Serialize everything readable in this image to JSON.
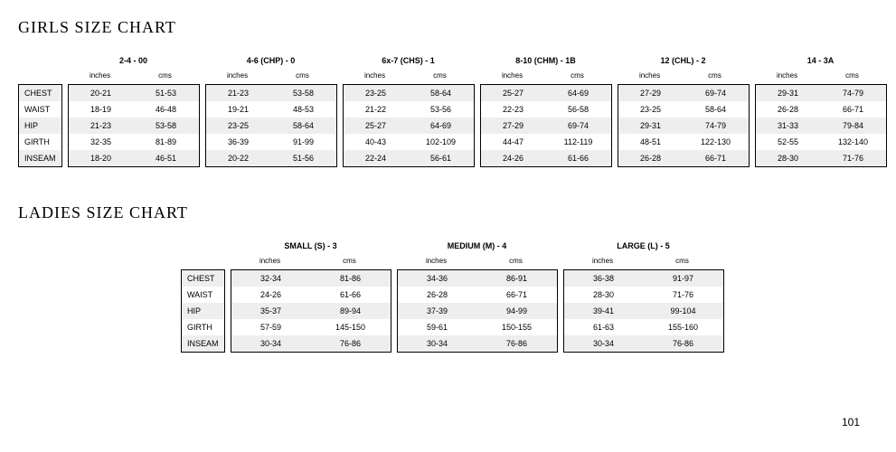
{
  "page_number": "101",
  "girls": {
    "title": "GIRLS SIZE CHART",
    "row_labels": [
      "CHEST",
      "WAIST",
      "HIP",
      "GIRTH",
      "INSEAM"
    ],
    "unit_labels": [
      "inches",
      "cms"
    ],
    "sizes": [
      {
        "label": "2-4 - 00",
        "rows": [
          [
            "20-21",
            "51-53"
          ],
          [
            "18-19",
            "46-48"
          ],
          [
            "21-23",
            "53-58"
          ],
          [
            "32-35",
            "81-89"
          ],
          [
            "18-20",
            "46-51"
          ]
        ]
      },
      {
        "label": "4-6 (CHP) - 0",
        "rows": [
          [
            "21-23",
            "53-58"
          ],
          [
            "19-21",
            "48-53"
          ],
          [
            "23-25",
            "58-64"
          ],
          [
            "36-39",
            "91-99"
          ],
          [
            "20-22",
            "51-56"
          ]
        ]
      },
      {
        "label": "6x-7 (CHS) - 1",
        "rows": [
          [
            "23-25",
            "58-64"
          ],
          [
            "21-22",
            "53-56"
          ],
          [
            "25-27",
            "64-69"
          ],
          [
            "40-43",
            "102-109"
          ],
          [
            "22-24",
            "56-61"
          ]
        ]
      },
      {
        "label": "8-10 (CHM) - 1B",
        "rows": [
          [
            "25-27",
            "64-69"
          ],
          [
            "22-23",
            "56-58"
          ],
          [
            "27-29",
            "69-74"
          ],
          [
            "44-47",
            "112-119"
          ],
          [
            "24-26",
            "61-66"
          ]
        ]
      },
      {
        "label": "12 (CHL) - 2",
        "rows": [
          [
            "27-29",
            "69-74"
          ],
          [
            "23-25",
            "58-64"
          ],
          [
            "29-31",
            "74-79"
          ],
          [
            "48-51",
            "122-130"
          ],
          [
            "26-28",
            "66-71"
          ]
        ]
      },
      {
        "label": "14 - 3A",
        "rows": [
          [
            "29-31",
            "74-79"
          ],
          [
            "26-28",
            "66-71"
          ],
          [
            "31-33",
            "79-84"
          ],
          [
            "52-55",
            "132-140"
          ],
          [
            "28-30",
            "71-76"
          ]
        ]
      }
    ]
  },
  "ladies": {
    "title": "LADIES SIZE CHART",
    "row_labels": [
      "CHEST",
      "WAIST",
      "HIP",
      "GIRTH",
      "INSEAM"
    ],
    "unit_labels": [
      "inches",
      "cms"
    ],
    "sizes": [
      {
        "label": "SMALL (S) - 3",
        "rows": [
          [
            "32-34",
            "81-86"
          ],
          [
            "24-26",
            "61-66"
          ],
          [
            "35-37",
            "89-94"
          ],
          [
            "57-59",
            "145-150"
          ],
          [
            "30-34",
            "76-86"
          ]
        ]
      },
      {
        "label": "MEDIUM (M) - 4",
        "rows": [
          [
            "34-36",
            "86-91"
          ],
          [
            "26-28",
            "66-71"
          ],
          [
            "37-39",
            "94-99"
          ],
          [
            "59-61",
            "150-155"
          ],
          [
            "30-34",
            "76-86"
          ]
        ]
      },
      {
        "label": "LARGE (L) - 5",
        "rows": [
          [
            "36-38",
            "91-97"
          ],
          [
            "28-30",
            "71-76"
          ],
          [
            "39-41",
            "99-104"
          ],
          [
            "61-63",
            "155-160"
          ],
          [
            "30-34",
            "76-86"
          ]
        ]
      }
    ]
  },
  "style": {
    "cell_width_girls": 72,
    "cell_width_ladies": 88,
    "row_colors": [
      "#eeeeee",
      "#ffffff"
    ]
  }
}
